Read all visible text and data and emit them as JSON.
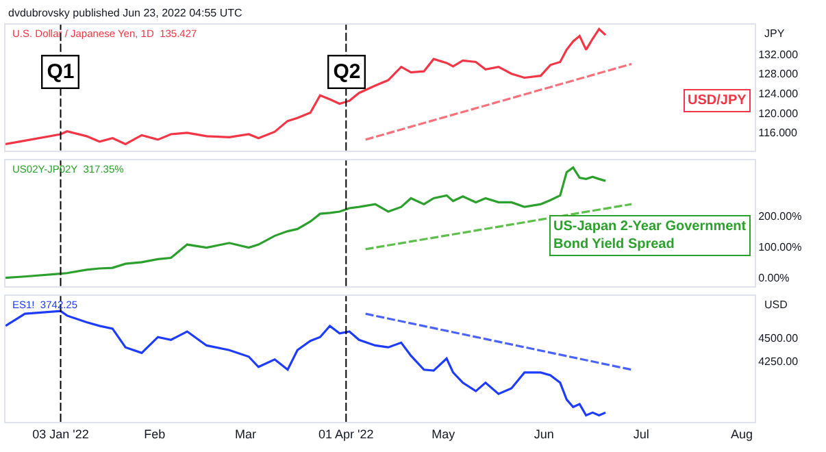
{
  "chart_data": [
    {
      "type": "line",
      "title": "dvdubrovsky published Jun 23, 2022 04:55 UTC",
      "subtitle": "U.S. Dollar / Japanese Yen, 1D  135.427",
      "ylabel": "JPY",
      "x": [
        "2021-12-17",
        "2021-12-23",
        "2022-01-03",
        "2022-01-05",
        "2022-01-11",
        "2022-01-15",
        "2022-01-19",
        "2022-01-23",
        "2022-01-28",
        "2022-02-02",
        "2022-02-06",
        "2022-02-11",
        "2022-02-17",
        "2022-02-24",
        "2022-03-02",
        "2022-03-05",
        "2022-03-10",
        "2022-03-14",
        "2022-03-17",
        "2022-03-21",
        "2022-03-24",
        "2022-03-27",
        "2022-03-30",
        "2022-04-02",
        "2022-04-05",
        "2022-04-10",
        "2022-04-14",
        "2022-04-18",
        "2022-04-21",
        "2022-04-25",
        "2022-04-28",
        "2022-05-02",
        "2022-05-04",
        "2022-05-07",
        "2022-05-11",
        "2022-05-14",
        "2022-05-18",
        "2022-05-22",
        "2022-05-26",
        "2022-05-31",
        "2022-06-03",
        "2022-06-06",
        "2022-06-08",
        "2022-06-10",
        "2022-06-12",
        "2022-06-14",
        "2022-06-16",
        "2022-06-18",
        "2022-06-20"
      ],
      "series": [
        {
          "color": "#f23645",
          "values": [
            113.7,
            114.4,
            115.7,
            116.3,
            115.3,
            114.2,
            114.9,
            113.7,
            115.5,
            114.6,
            115.7,
            116.0,
            115.3,
            115.1,
            115.7,
            114.9,
            116.2,
            118.4,
            119.0,
            120.1,
            123.6,
            122.8,
            121.9,
            122.5,
            124.1,
            125.6,
            126.7,
            129.4,
            128.3,
            128.5,
            131.0,
            130.2,
            129.5,
            130.7,
            130.4,
            128.9,
            129.4,
            128.0,
            127.2,
            127.6,
            129.8,
            130.4,
            132.9,
            134.6,
            135.7,
            132.9,
            135.1,
            137.1,
            135.9
          ]
        },
        {
          "type": "line",
          "line_style": "dashed",
          "color": "#f7707b",
          "x": [
            "2022-04-07",
            "2022-06-28"
          ],
          "values": [
            114.6,
            130.0
          ]
        }
      ],
      "xlim": [
        "2021-12-17",
        "2022-08-05"
      ],
      "ylim": [
        112.4,
        138
      ],
      "yticks": [
        {
          "value": 116,
          "label": "116.000"
        },
        {
          "value": 120,
          "label": "120.000"
        },
        {
          "value": 124,
          "label": "124.000"
        },
        {
          "value": 128,
          "label": "128.000"
        },
        {
          "value": 132,
          "label": "132.000"
        }
      ],
      "tick_labels": "y",
      "ref_lines": [
        {
          "axis": "x",
          "value": "2022-01-03",
          "label": "Q1",
          "line_style": "dashed",
          "color": "#000000"
        },
        {
          "axis": "x",
          "value": "2022-04-01",
          "label": "Q2",
          "line_style": "dashed",
          "color": "#000000"
        }
      ],
      "annotations": [
        "USD/JPY"
      ]
    },
    {
      "type": "line",
      "subtitle": "US02Y-JP02Y  317.35%",
      "x": [
        "2021-12-17",
        "2021-12-23",
        "2022-01-03",
        "2022-01-05",
        "2022-01-11",
        "2022-01-15",
        "2022-01-19",
        "2022-01-23",
        "2022-01-28",
        "2022-02-02",
        "2022-02-06",
        "2022-02-11",
        "2022-02-17",
        "2022-02-24",
        "2022-03-02",
        "2022-03-05",
        "2022-03-10",
        "2022-03-14",
        "2022-03-17",
        "2022-03-21",
        "2022-03-24",
        "2022-03-27",
        "2022-03-30",
        "2022-04-02",
        "2022-04-05",
        "2022-04-10",
        "2022-04-14",
        "2022-04-18",
        "2022-04-21",
        "2022-04-25",
        "2022-04-28",
        "2022-05-02",
        "2022-05-04",
        "2022-05-07",
        "2022-05-11",
        "2022-05-14",
        "2022-05-18",
        "2022-05-22",
        "2022-05-26",
        "2022-05-31",
        "2022-06-03",
        "2022-06-06",
        "2022-06-08",
        "2022-06-10",
        "2022-06-12",
        "2022-06-14",
        "2022-06-16",
        "2022-06-18",
        "2022-06-20"
      ],
      "series": [
        {
          "color": "#2ca02c",
          "values": [
            0,
            4,
            13,
            15,
            26,
            30,
            32,
            45,
            50,
            60,
            64,
            107,
            97,
            112,
            97,
            107,
            135,
            150,
            157,
            181,
            206,
            209,
            213,
            224,
            228,
            237,
            213,
            228,
            256,
            237,
            256,
            265,
            247,
            262,
            243,
            256,
            243,
            243,
            228,
            237,
            250,
            265,
            340,
            355,
            322,
            318,
            325,
            318,
            312
          ]
        },
        {
          "type": "line",
          "line_style": "dashed",
          "color": "#5cbf4a",
          "x": [
            "2022-04-07",
            "2022-06-28"
          ],
          "values": [
            92,
            237
          ]
        }
      ],
      "xlim": [
        "2021-12-17",
        "2022-08-05"
      ],
      "ylim": [
        -27,
        378
      ],
      "yticks": [
        {
          "value": 0,
          "label": "0.00%"
        },
        {
          "value": 100,
          "label": "100.00%"
        },
        {
          "value": 200,
          "label": "200.00%"
        }
      ],
      "tick_labels": "y",
      "ref_lines": [
        {
          "axis": "x",
          "value": "2022-01-03",
          "line_style": "dashed",
          "color": "#000000"
        },
        {
          "axis": "x",
          "value": "2022-04-01",
          "line_style": "dashed",
          "color": "#000000"
        }
      ],
      "annotations": [
        "US-Japan 2-Year Government\nBond Yield Spread"
      ]
    },
    {
      "type": "line",
      "subtitle": "ES1!  3742.25",
      "ylabel": "USD",
      "x": [
        "2021-12-17",
        "2021-12-23",
        "2022-01-03",
        "2022-01-05",
        "2022-01-11",
        "2022-01-15",
        "2022-01-19",
        "2022-01-23",
        "2022-01-28",
        "2022-02-02",
        "2022-02-06",
        "2022-02-11",
        "2022-02-17",
        "2022-02-24",
        "2022-03-02",
        "2022-03-05",
        "2022-03-10",
        "2022-03-14",
        "2022-03-17",
        "2022-03-21",
        "2022-03-24",
        "2022-03-27",
        "2022-03-30",
        "2022-04-02",
        "2022-04-05",
        "2022-04-10",
        "2022-04-14",
        "2022-04-18",
        "2022-04-21",
        "2022-04-25",
        "2022-04-28",
        "2022-05-02",
        "2022-05-04",
        "2022-05-07",
        "2022-05-11",
        "2022-05-14",
        "2022-05-18",
        "2022-05-22",
        "2022-05-26",
        "2022-05-31",
        "2022-06-03",
        "2022-06-06",
        "2022-06-08",
        "2022-06-10",
        "2022-06-12",
        "2022-06-14",
        "2022-06-16",
        "2022-06-18",
        "2022-06-20"
      ],
      "series": [
        {
          "color": "#1e3cff",
          "values": [
            4630,
            4760,
            4790,
            4740,
            4670,
            4630,
            4600,
            4400,
            4340,
            4510,
            4480,
            4570,
            4420,
            4370,
            4300,
            4190,
            4270,
            4160,
            4370,
            4470,
            4510,
            4630,
            4550,
            4570,
            4480,
            4420,
            4400,
            4450,
            4310,
            4160,
            4150,
            4280,
            4130,
            4020,
            3930,
            4020,
            3900,
            3960,
            4130,
            4130,
            4100,
            4020,
            3840,
            3760,
            3790,
            3670,
            3700,
            3670,
            3700
          ]
        },
        {
          "type": "line",
          "line_style": "dashed",
          "color": "#4a63ff",
          "x": [
            "2022-04-07",
            "2022-06-28"
          ],
          "values": [
            4760,
            4160
          ]
        }
      ],
      "xlim": [
        "2021-12-17",
        "2022-08-05"
      ],
      "ylim": [
        3600,
        4950
      ],
      "xticks": [
        {
          "value": "2022-01-03",
          "label": "03 Jan '22"
        },
        {
          "value": "2022-02-01",
          "label": "Feb"
        },
        {
          "value": "2022-03-01",
          "label": "Mar"
        },
        {
          "value": "2022-04-01",
          "label": "01 Apr '22"
        },
        {
          "value": "2022-05-01",
          "label": "May"
        },
        {
          "value": "2022-06-01",
          "label": "Jun"
        },
        {
          "value": "2022-07-01",
          "label": "Jul"
        },
        {
          "value": "2022-08-01",
          "label": "Aug"
        }
      ],
      "yticks": [
        {
          "value": 4250,
          "label": "4250.00"
        },
        {
          "value": 4500,
          "label": "4500.00"
        }
      ],
      "ref_lines": [
        {
          "axis": "x",
          "value": "2022-01-03",
          "line_style": "dashed",
          "color": "#000000"
        },
        {
          "axis": "x",
          "value": "2022-04-01",
          "line_style": "dashed",
          "color": "#000000"
        }
      ]
    }
  ]
}
